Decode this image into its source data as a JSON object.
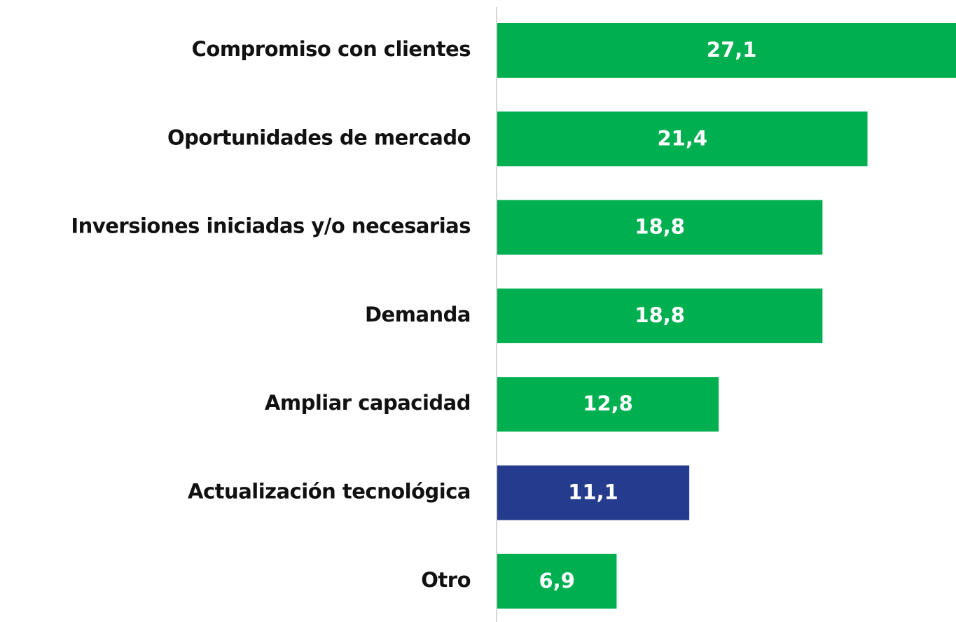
{
  "chart_data": {
    "type": "barh",
    "categories": [
      "Compromiso con clientes",
      "Oportunidades de mercado",
      "Inversiones iniciadas y/o necesarias",
      "Demanda",
      "Ampliar capacidad",
      "Actualización tecnológica",
      "Otro"
    ],
    "values": [
      27.1,
      21.4,
      18.8,
      18.8,
      12.8,
      11.1,
      6.9
    ],
    "value_labels": [
      "27,1",
      "21,4",
      "18,8",
      "18,8",
      "12,8",
      "11,1",
      "6,9"
    ],
    "colors": [
      "#00b050",
      "#00b050",
      "#00b050",
      "#00b050",
      "#00b050",
      "#253b8e",
      "#00b050"
    ]
  }
}
